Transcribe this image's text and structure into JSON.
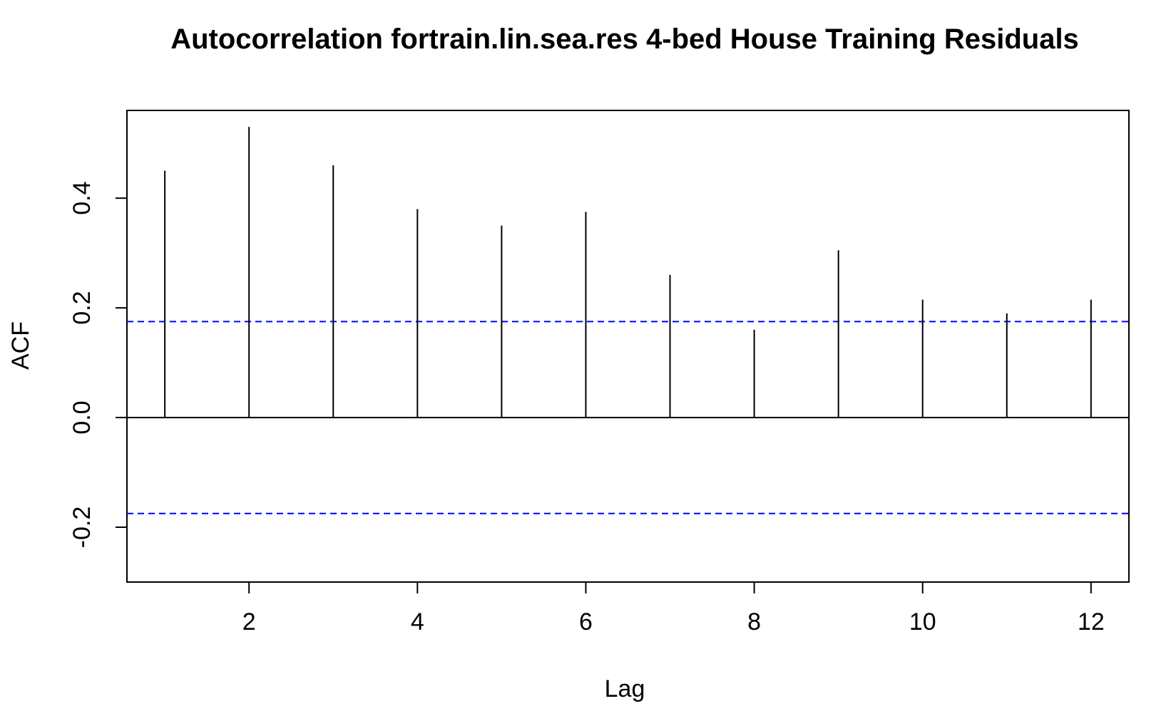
{
  "chart_data": {
    "type": "bar",
    "subtype": "acf",
    "title": "Autocorrelation fortrain.lin.sea.res 4-bed House Training Residuals",
    "xlabel": "Lag",
    "ylabel": "ACF",
    "xlim": [
      0.55,
      12.45
    ],
    "ylim": [
      -0.3,
      0.56
    ],
    "x_ticks": [
      2,
      4,
      6,
      8,
      10,
      12
    ],
    "x_tick_labels": [
      "2",
      "4",
      "6",
      "8",
      "10",
      "12"
    ],
    "y_ticks": [
      -0.2,
      0.0,
      0.2,
      0.4
    ],
    "y_tick_labels": [
      "-0.2",
      "0.0",
      "0.2",
      "0.4"
    ],
    "lags": [
      1,
      2,
      3,
      4,
      5,
      6,
      7,
      8,
      9,
      10,
      11,
      12
    ],
    "values": [
      0.45,
      0.53,
      0.46,
      0.38,
      0.35,
      0.375,
      0.26,
      0.16,
      0.305,
      0.215,
      0.19,
      0.215
    ],
    "confidence_bounds": [
      0.175,
      -0.175
    ],
    "zero_line": 0.0,
    "grid": false,
    "colors": {
      "bars": "#000000",
      "confidence": "#0000ff",
      "axis": "#000000"
    }
  }
}
